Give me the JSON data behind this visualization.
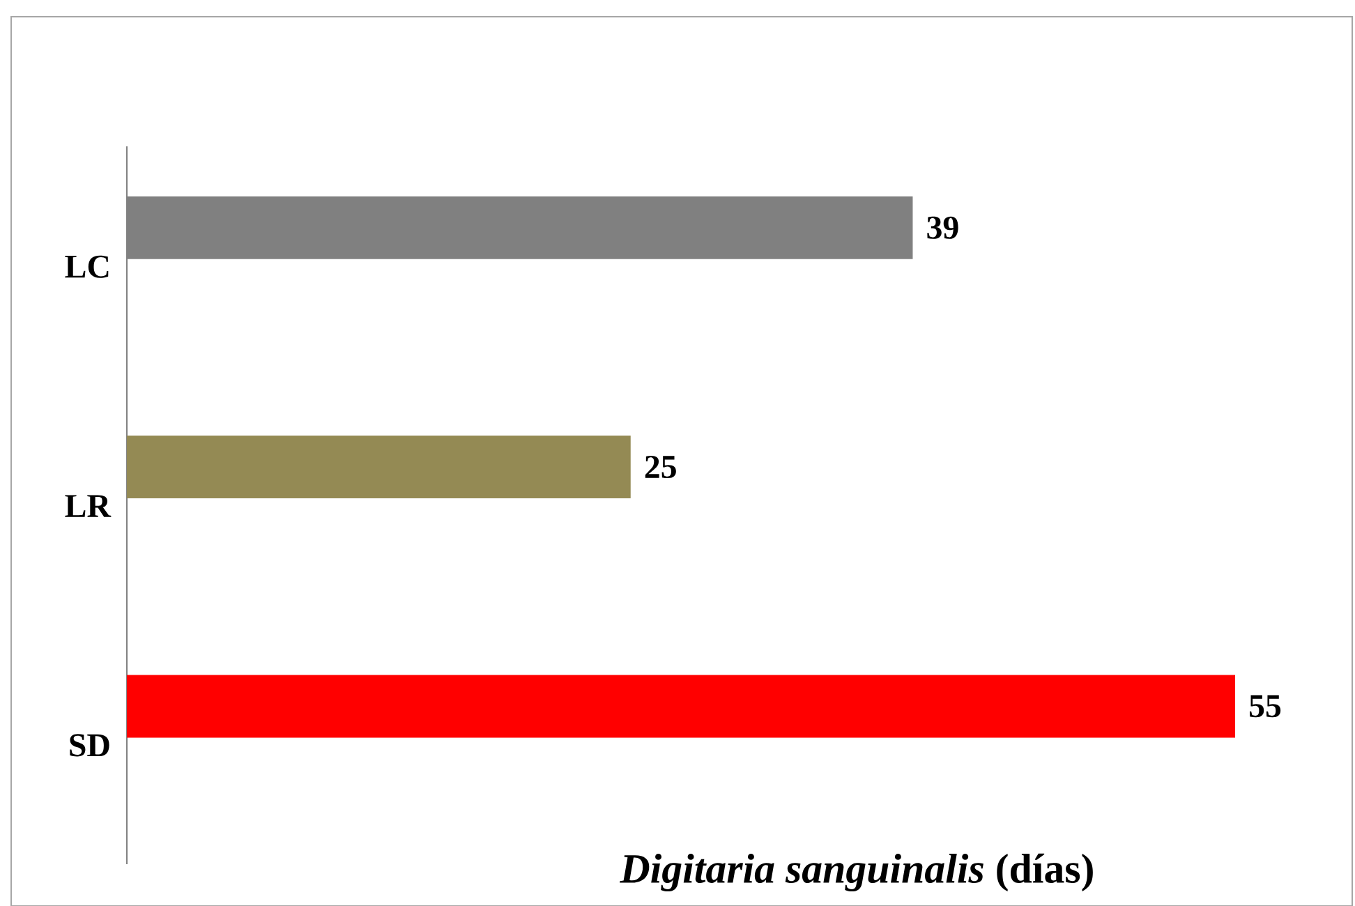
{
  "chart_data": {
    "type": "bar",
    "orientation": "horizontal",
    "xlabel": "*Digitaria sanguinalis* (días)",
    "categories": [
      "LC",
      "LR",
      "SD"
    ],
    "values": [
      39,
      25,
      55
    ],
    "colors": [
      "#808080",
      "#948a54",
      "#ff0000"
    ],
    "data_labels": true
  }
}
